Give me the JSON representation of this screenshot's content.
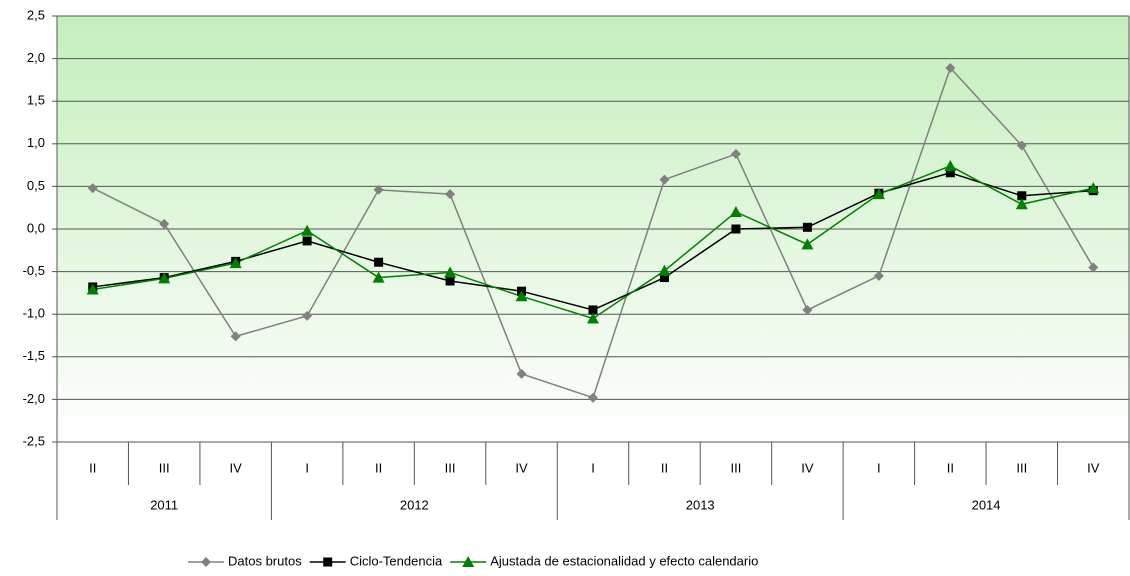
{
  "chart_data": {
    "type": "line",
    "categories": [
      "II",
      "III",
      "IV",
      "I",
      "II",
      "III",
      "IV",
      "I",
      "II",
      "III",
      "IV",
      "I",
      "II",
      "III",
      "IV"
    ],
    "x_groups": [
      {
        "label": "2011",
        "count": 3
      },
      {
        "label": "2012",
        "count": 4
      },
      {
        "label": "2013",
        "count": 4
      },
      {
        "label": "2014",
        "count": 4
      }
    ],
    "series": [
      {
        "name": "Datos brutos",
        "color": "#808080",
        "marker": "diamond",
        "values": [
          0.48,
          0.06,
          -1.26,
          -1.02,
          0.46,
          0.41,
          -1.7,
          -1.98,
          0.58,
          0.88,
          -0.95,
          -0.55,
          1.89,
          0.98,
          -0.45
        ]
      },
      {
        "name": "Ciclo-Tendencia",
        "color": "#000000",
        "marker": "square",
        "values": [
          -0.68,
          -0.57,
          -0.38,
          -0.14,
          -0.39,
          -0.61,
          -0.73,
          -0.95,
          -0.57,
          0.0,
          0.02,
          0.42,
          0.66,
          0.39,
          0.45
        ]
      },
      {
        "name": "Ajustada de estacionalidad y efecto calendario",
        "color": "#008000",
        "marker": "triangle",
        "values": [
          -0.71,
          -0.58,
          -0.4,
          -0.02,
          -0.57,
          -0.51,
          -0.79,
          -1.05,
          -0.49,
          0.2,
          -0.18,
          0.41,
          0.74,
          0.29,
          0.48
        ]
      }
    ],
    "ylim": [
      -2.5,
      2.5
    ],
    "yticks": [
      {
        "value": -2.5,
        "label": "-2,5"
      },
      {
        "value": -2,
        "label": "-2,0"
      },
      {
        "value": -1.5,
        "label": "-1,5"
      },
      {
        "value": -1,
        "label": "-1,0"
      },
      {
        "value": -0.5,
        "label": "-0,5"
      },
      {
        "value": 0,
        "label": "0,0"
      },
      {
        "value": 0.5,
        "label": "0,5"
      },
      {
        "value": 1,
        "label": "1,0"
      },
      {
        "value": 1.5,
        "label": "1,5"
      },
      {
        "value": 2,
        "label": "2,0"
      },
      {
        "value": 2.5,
        "label": "2,5"
      }
    ],
    "grid": true,
    "legend": "bottom"
  }
}
